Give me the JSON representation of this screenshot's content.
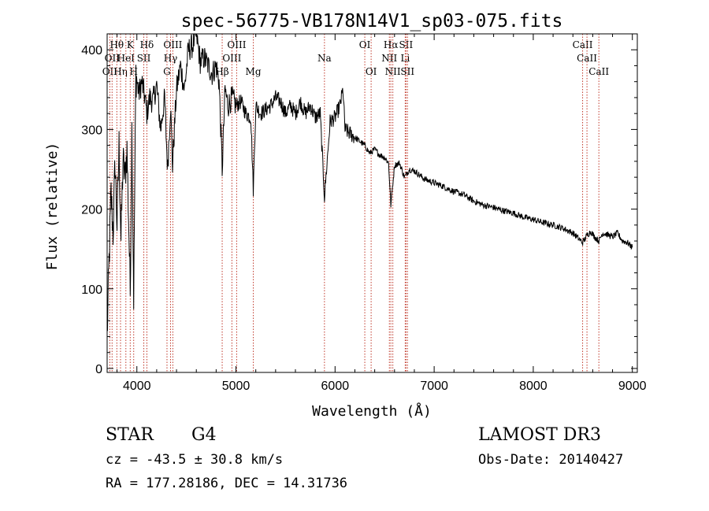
{
  "chart_data": {
    "type": "line",
    "title": "spec-56775-VB178N14V1_sp03-075.fits",
    "xlabel": "Wavelength (Å)",
    "ylabel": "Flux (relative)",
    "xlim": [
      3700,
      9050
    ],
    "ylim": [
      -5,
      420
    ],
    "xticks": [
      4000,
      5000,
      6000,
      7000,
      8000,
      9000
    ],
    "yticks": [
      0,
      100,
      200,
      300,
      400
    ],
    "grid": false,
    "series": [
      {
        "name": "spectrum",
        "x": [
          3700,
          3720,
          3740,
          3760,
          3780,
          3800,
          3820,
          3840,
          3860,
          3880,
          3900,
          3920,
          3933,
          3950,
          3968,
          3990,
          4020,
          4050,
          4080,
          4101,
          4130,
          4160,
          4200,
          4240,
          4280,
          4310,
          4340,
          4360,
          4400,
          4440,
          4480,
          4520,
          4560,
          4600,
          4640,
          4680,
          4720,
          4760,
          4800,
          4830,
          4861,
          4890,
          4920,
          4960,
          5000,
          5050,
          5100,
          5150,
          5175,
          5200,
          5250,
          5300,
          5350,
          5400,
          5450,
          5500,
          5550,
          5600,
          5650,
          5700,
          5750,
          5800,
          5850,
          5893,
          5950,
          6000,
          6050,
          6080,
          6100,
          6150,
          6200,
          6250,
          6300,
          6350,
          6400,
          6450,
          6500,
          6540,
          6563,
          6600,
          6650,
          6700,
          6750,
          6800,
          6900,
          7000,
          7100,
          7200,
          7300,
          7400,
          7500,
          7600,
          7700,
          7800,
          7900,
          8000,
          8100,
          8200,
          8300,
          8400,
          8498,
          8542,
          8580,
          8620,
          8662,
          8700,
          8750,
          8800,
          8850,
          8900,
          8950,
          9000
        ],
        "y": [
          40,
          135,
          220,
          170,
          260,
          180,
          280,
          160,
          260,
          240,
          275,
          170,
          95,
          300,
          90,
          370,
          345,
          360,
          340,
          320,
          340,
          335,
          355,
          300,
          340,
          250,
          330,
          255,
          350,
          380,
          350,
          400,
          405,
          420,
          385,
          390,
          380,
          370,
          380,
          360,
          250,
          350,
          330,
          340,
          330,
          335,
          320,
          315,
          225,
          330,
          320,
          325,
          330,
          340,
          335,
          320,
          330,
          320,
          335,
          320,
          330,
          315,
          320,
          215,
          310,
          315,
          330,
          350,
          300,
          295,
          290,
          285,
          280,
          270,
          275,
          268,
          265,
          258,
          205,
          255,
          258,
          240,
          250,
          248,
          238,
          233,
          228,
          222,
          218,
          210,
          205,
          202,
          198,
          195,
          190,
          187,
          183,
          180,
          176,
          170,
          158,
          167,
          172,
          165,
          160,
          170,
          168,
          165,
          170,
          160,
          158,
          152
        ]
      }
    ],
    "line_markers": [
      {
        "wl": 3727,
        "label": "OII",
        "row": 2
      },
      {
        "wl": 3750,
        "label": "OII",
        "row": 1
      },
      {
        "wl": 3798,
        "label": "Hθ",
        "row": 0
      },
      {
        "wl": 3835,
        "label": "Hη",
        "row": 2
      },
      {
        "wl": 3889,
        "label": "HeI",
        "row": 1
      },
      {
        "wl": 3933,
        "label": "K",
        "row": 0
      },
      {
        "wl": 3968,
        "label": "H",
        "row": 2
      },
      {
        "wl": 4070,
        "label": "SII",
        "row": 1
      },
      {
        "wl": 4101,
        "label": "Hδ",
        "row": 0
      },
      {
        "wl": 4304,
        "label": "G",
        "row": 2
      },
      {
        "wl": 4340,
        "label": "Hγ",
        "row": 1
      },
      {
        "wl": 4363,
        "label": "OIII",
        "row": 0
      },
      {
        "wl": 4861,
        "label": "Hβ",
        "row": 2
      },
      {
        "wl": 4959,
        "label": "OIII",
        "row": 1
      },
      {
        "wl": 5007,
        "label": "OIII",
        "row": 0
      },
      {
        "wl": 5175,
        "label": "Mg",
        "row": 2
      },
      {
        "wl": 5893,
        "label": "Na",
        "row": 1
      },
      {
        "wl": 6300,
        "label": "OI",
        "row": 0
      },
      {
        "wl": 6364,
        "label": "OI",
        "row": 2
      },
      {
        "wl": 6548,
        "label": "NII",
        "row": 1
      },
      {
        "wl": 6563,
        "label": "Hα",
        "row": 0
      },
      {
        "wl": 6583,
        "label": "NII",
        "row": 2
      },
      {
        "wl": 6708,
        "label": "Li",
        "row": 1
      },
      {
        "wl": 6716,
        "label": "SII",
        "row": 0
      },
      {
        "wl": 6731,
        "label": "SII",
        "row": 2
      },
      {
        "wl": 8498,
        "label": "CaII",
        "row": 0
      },
      {
        "wl": 8542,
        "label": "CaII",
        "row": 1
      },
      {
        "wl": 8662,
        "label": "CaII",
        "row": 2
      }
    ]
  },
  "info": {
    "object_class": "STAR",
    "subclass": "G4",
    "redshift": "cz = -43.5 ± 30.8 km/s",
    "coordinates": "RA = 177.28186, DEC =  14.31736",
    "survey": "LAMOST DR3",
    "obs_date": "Obs-Date: 20140427"
  }
}
